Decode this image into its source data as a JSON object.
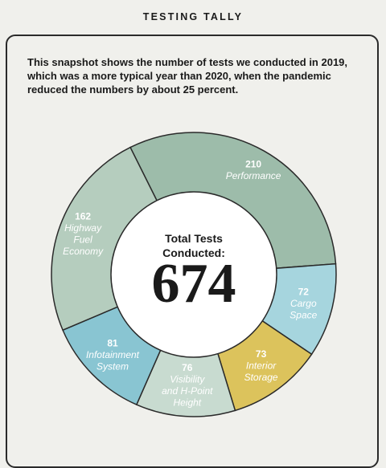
{
  "header": {
    "title": "TESTING TALLY"
  },
  "intro_text": "This snapshot shows the number of tests we conducted in 2019, which was a more typical year than 2020, when the pandemic reduced the numbers by about 25 percent.",
  "center": {
    "line1": "Total Tests",
    "line2": "Conducted:",
    "total": "674"
  },
  "chart_data": {
    "type": "pie",
    "variant": "donut",
    "total": 674,
    "slices": [
      {
        "value": 210,
        "label_lines": [
          "Performance"
        ],
        "color": "#9dbcaa"
      },
      {
        "value": 72,
        "label_lines": [
          "Cargo",
          "Space"
        ],
        "color": "#a6d5de"
      },
      {
        "value": 73,
        "label_lines": [
          "Interior",
          "Storage"
        ],
        "color": "#dcc35c"
      },
      {
        "value": 76,
        "label_lines": [
          "Visibility",
          "and H-Point",
          "Height"
        ],
        "color": "#c8dbd0"
      },
      {
        "value": 81,
        "label_lines": [
          "Infotainment",
          "System"
        ],
        "color": "#89c5d2"
      },
      {
        "value": 162,
        "label_lines": [
          "Highway",
          "Fuel",
          "Economy"
        ],
        "color": "#b5cdbe"
      }
    ]
  }
}
